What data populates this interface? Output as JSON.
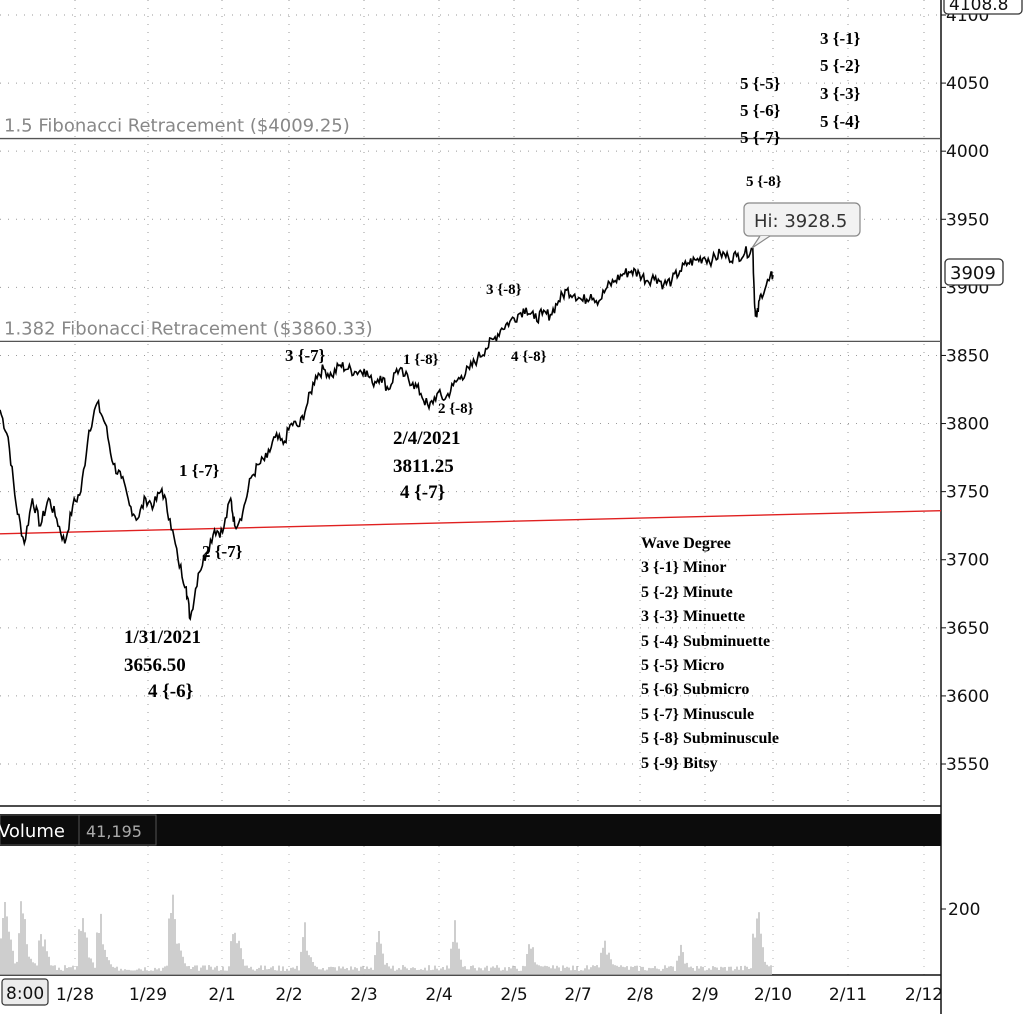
{
  "chart_data": {
    "type": "line",
    "price_axis": {
      "ticks": [
        "3550",
        "3600",
        "3650",
        "3700",
        "3750",
        "3800",
        "3850",
        "3900",
        "3950",
        "4000",
        "4050",
        "4100"
      ],
      "top_tag": "4108.8",
      "range": [
        3522,
        4110
      ]
    },
    "x_ticks": [
      "8:00",
      "1/28",
      "1/29",
      "2/1",
      "2/2",
      "2/3",
      "2/4",
      "2/5",
      "2/7",
      "2/8",
      "2/9",
      "2/10",
      "2/11",
      "2/12"
    ],
    "last_price": "3909",
    "high_callout": "Hi: 3928.5",
    "fib_lines": [
      {
        "label": "1.5 Fibonacci  Retracement  ($4009.25)",
        "value": 4009.25
      },
      {
        "label": "1.382 Fibonacci Retracement ($3860.33)",
        "value": 3860.33
      }
    ],
    "trend_line": {
      "color": "#e02020",
      "start": 3719,
      "end": 3736
    },
    "price_series": [
      [
        0,
        3810
      ],
      [
        0.02,
        3790
      ],
      [
        0.04,
        3740
      ],
      [
        0.06,
        3712
      ],
      [
        0.08,
        3745
      ],
      [
        0.1,
        3725
      ],
      [
        0.12,
        3745
      ],
      [
        0.14,
        3730
      ],
      [
        0.16,
        3712
      ],
      [
        0.18,
        3740
      ],
      [
        0.2,
        3750
      ],
      [
        0.22,
        3795
      ],
      [
        0.24,
        3815
      ],
      [
        0.26,
        3800
      ],
      [
        0.28,
        3770
      ],
      [
        0.3,
        3760
      ],
      [
        0.32,
        3740
      ],
      [
        0.34,
        3730
      ],
      [
        0.36,
        3745
      ],
      [
        0.38,
        3740
      ],
      [
        0.4,
        3752
      ],
      [
        0.42,
        3730
      ],
      [
        0.44,
        3700
      ],
      [
        0.46,
        3680
      ],
      [
        0.47,
        3656.5
      ],
      [
        0.49,
        3690
      ],
      [
        0.51,
        3705
      ],
      [
        0.53,
        3722
      ],
      [
        0.55,
        3720
      ],
      [
        0.57,
        3745
      ],
      [
        0.58,
        3725
      ],
      [
        0.6,
        3735
      ],
      [
        0.62,
        3760
      ],
      [
        0.64,
        3770
      ],
      [
        0.66,
        3775
      ],
      [
        0.68,
        3790
      ],
      [
        0.7,
        3785
      ],
      [
        0.72,
        3800
      ],
      [
        0.74,
        3798
      ],
      [
        0.76,
        3815
      ],
      [
        0.78,
        3835
      ],
      [
        0.8,
        3840
      ],
      [
        0.82,
        3835
      ],
      [
        0.84,
        3843
      ],
      [
        0.86,
        3840
      ],
      [
        0.88,
        3838
      ],
      [
        0.9,
        3840
      ],
      [
        0.92,
        3830
      ],
      [
        0.94,
        3835
      ],
      [
        0.96,
        3825
      ],
      [
        0.98,
        3840
      ],
      [
        1.0,
        3835
      ],
      [
        1.02,
        3830
      ],
      [
        1.04,
        3822
      ],
      [
        1.06,
        3811.25
      ],
      [
        1.08,
        3822
      ],
      [
        1.1,
        3818
      ],
      [
        1.12,
        3828
      ],
      [
        1.14,
        3835
      ],
      [
        1.16,
        3840
      ],
      [
        1.18,
        3848
      ],
      [
        1.2,
        3855
      ],
      [
        1.22,
        3862
      ],
      [
        1.24,
        3870
      ],
      [
        1.26,
        3875
      ],
      [
        1.28,
        3880
      ],
      [
        1.3,
        3885
      ],
      [
        1.32,
        3877
      ],
      [
        1.34,
        3880
      ],
      [
        1.36,
        3880
      ],
      [
        1.38,
        3890
      ],
      [
        1.4,
        3898
      ],
      [
        1.42,
        3895
      ],
      [
        1.44,
        3890
      ],
      [
        1.46,
        3895
      ],
      [
        1.48,
        3890
      ],
      [
        1.5,
        3900
      ],
      [
        1.52,
        3905
      ],
      [
        1.54,
        3910
      ],
      [
        1.56,
        3912
      ],
      [
        1.58,
        3910
      ],
      [
        1.6,
        3905
      ],
      [
        1.62,
        3908
      ],
      [
        1.64,
        3902
      ],
      [
        1.66,
        3905
      ],
      [
        1.68,
        3912
      ],
      [
        1.7,
        3918
      ],
      [
        1.72,
        3920
      ],
      [
        1.74,
        3922
      ],
      [
        1.76,
        3920
      ],
      [
        1.78,
        3925
      ],
      [
        1.8,
        3922
      ],
      [
        1.82,
        3923
      ],
      [
        1.84,
        3925
      ],
      [
        1.86,
        3928.5
      ],
      [
        1.865,
        3885
      ],
      [
        1.87,
        3878
      ],
      [
        1.88,
        3895
      ],
      [
        1.9,
        3905
      ],
      [
        1.91,
        3909
      ]
    ],
    "volume": {
      "label": "Volume",
      "value": "41,195",
      "tick": "200"
    }
  },
  "annotations": {
    "right_top": [
      "3 {-1}",
      "5 {-2}",
      "3 {-3}",
      "5 {-4}"
    ],
    "right_mid": [
      "5 {-5}",
      "5 {-6}",
      "5 {-7}"
    ],
    "right_low": "5 {-8}",
    "wave_3_8": "3 {-8}",
    "wave_4_8": "4 {-8}",
    "wave_3_7": "3 {-7}",
    "wave_1_8": "1 {-8}",
    "wave_2_8": "2 {-8}",
    "date_2_4": "2/4/2021",
    "price_2_4": "3811.25",
    "wave_4_7": "4 {-7}",
    "wave_1_7": "1 {-7}",
    "wave_2_7": "2 {-7}",
    "date_1_31": "1/31/2021",
    "price_1_31": "3656.50",
    "wave_4_6": "4 {-6}"
  },
  "legend": {
    "title": "Wave Degree",
    "items": [
      "3 {-1} Minor",
      "5 {-2} Minute",
      "3 {-3} Minuette",
      "5 {-4} Subminuette",
      "5 {-5} Micro",
      "5 {-6} Submicro",
      "5 {-7} Minuscule",
      "5 {-8} Subminuscule",
      "5 {-9} Bitsy"
    ]
  },
  "colors": {
    "price": "#000000",
    "fib": "#555555",
    "trend": "#e02020",
    "volume_bar": "#bdbdbd",
    "panel_header": "#111111"
  }
}
